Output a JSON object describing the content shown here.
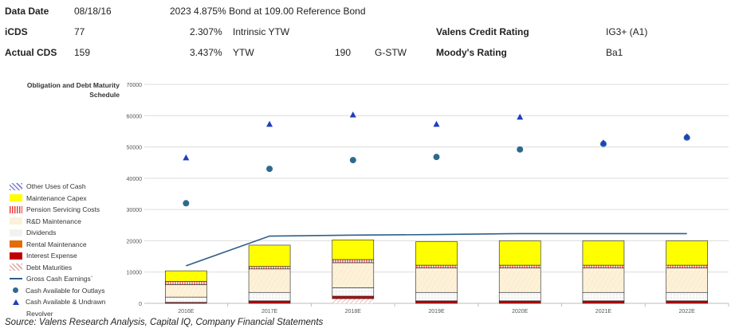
{
  "header": {
    "data_date_label": "Data Date",
    "data_date_value": "08/18/16",
    "reference_bond": "2023 4.875% Bond at 109.00 Reference Bond",
    "icds_label": "iCDS",
    "icds_value": "77",
    "intrinsic_ytw_value": "2.307%",
    "intrinsic_ytw_label": "Intrinsic YTW",
    "actual_cds_label": "Actual CDS",
    "actual_cds_value": "159",
    "ytw_value": "3.437%",
    "ytw_label": "YTW",
    "g_stw_value": "190",
    "g_stw_label": "G-STW",
    "valens_rating_label": "Valens Credit Rating",
    "valens_rating_value": "IG3+ (A1)",
    "moodys_label": "Moody's Rating",
    "moodys_value": "Ba1"
  },
  "source": "Source: Valens Research Analysis, Capital IQ, Company Financial Statements",
  "colors": {
    "other_uses": "#7f7fd8",
    "maint_capex": "#ffff00",
    "pension": "#e8403a",
    "rd": "#fdf1d8",
    "dividends": "#eeeeee",
    "rental": "#e36c0a",
    "interest": "#c00000",
    "debt": "#e0a7a7",
    "gce_line": "#2e5f8a",
    "cash_outlay_dot": "#2e6a8e",
    "cash_revolver": "#1f3fbf"
  },
  "chart_data": {
    "type": "bar",
    "title": "Obligation and Debt Maturity Schedule",
    "categories": [
      "2016E",
      "2017E",
      "2018E",
      "2019E",
      "2020E",
      "2021E",
      "2022E"
    ],
    "ylim": [
      0,
      70000
    ],
    "yticks": [
      "0",
      "10000",
      "20000",
      "30000",
      "40000",
      "50000",
      "60000",
      "70000"
    ],
    "grid": true,
    "legend_position": "left",
    "stacked_series": [
      {
        "name": "Debt Maturities",
        "key": "debt",
        "values": [
          0,
          0,
          1500,
          0,
          0,
          0,
          0
        ]
      },
      {
        "name": "Interest Expense",
        "key": "interest",
        "values": [
          300,
          800,
          800,
          800,
          800,
          800,
          800
        ]
      },
      {
        "name": "Rental Maintenance",
        "key": "rental",
        "values": [
          0,
          0,
          0,
          0,
          0,
          0,
          0
        ]
      },
      {
        "name": "Dividends",
        "key": "dividends",
        "values": [
          1700,
          2700,
          2700,
          2700,
          2700,
          2700,
          2700
        ]
      },
      {
        "name": "R&D Maintenance",
        "key": "rd",
        "values": [
          4000,
          7500,
          8000,
          7800,
          7800,
          7800,
          7800
        ]
      },
      {
        "name": "Pension Servicing Costs",
        "key": "pension",
        "values": [
          1000,
          800,
          1000,
          900,
          900,
          900,
          900
        ]
      },
      {
        "name": "Maintenance Capex",
        "key": "maint_capex",
        "values": [
          3400,
          6800,
          6300,
          7500,
          7800,
          7800,
          7800
        ]
      },
      {
        "name": "Other Uses of Cash",
        "key": "other_uses",
        "values": [
          0,
          0,
          0,
          0,
          0,
          0,
          0
        ]
      }
    ],
    "line_series": {
      "name": "Gross Cash Earnings`",
      "values": [
        12000,
        21500,
        21800,
        22000,
        22300,
        22300,
        22300
      ]
    },
    "dot_series": {
      "name": "Cash Available for Outlays",
      "values": [
        32000,
        43000,
        45800,
        46800,
        49200,
        51000,
        53000
      ]
    },
    "triangle_series": {
      "name": "Cash Available & Undrawn Revolver",
      "values": [
        46500,
        57200,
        60200,
        57200,
        59500,
        51300,
        53300
      ]
    }
  },
  "legend": [
    {
      "label": "Other Uses of Cash",
      "kind": "box",
      "key": "other_uses"
    },
    {
      "label": "Maintenance Capex",
      "kind": "box",
      "key": "maint_capex"
    },
    {
      "label": "Pension Servicing Costs",
      "kind": "box",
      "key": "pension"
    },
    {
      "label": "R&D Maintenance",
      "kind": "box",
      "key": "rd"
    },
    {
      "label": "Dividends",
      "kind": "box",
      "key": "dividends"
    },
    {
      "label": "Rental Maintenance",
      "kind": "box",
      "key": "rental"
    },
    {
      "label": "Interest Expense",
      "kind": "box",
      "key": "interest"
    },
    {
      "label": "Debt Maturities",
      "kind": "box",
      "key": "debt"
    },
    {
      "label": "Gross Cash Earnings`",
      "kind": "line",
      "key": "gce_line"
    },
    {
      "label": "Cash Available for Outlays",
      "kind": "dot",
      "key": "cash_outlay_dot"
    },
    {
      "label": "Cash Available & Undrawn",
      "kind": "triangle",
      "key": "cash_revolver"
    },
    {
      "label": "Revolver",
      "kind": "none",
      "key": ""
    }
  ]
}
